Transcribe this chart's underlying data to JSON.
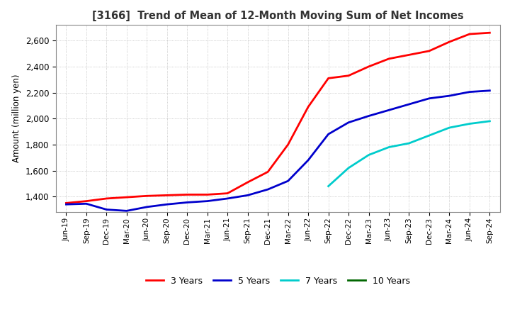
{
  "title": "[3166]  Trend of Mean of 12-Month Moving Sum of Net Incomes",
  "ylabel": "Amount (million yen)",
  "ylim": [
    1280,
    2720
  ],
  "yticks": [
    1400,
    1600,
    1800,
    2000,
    2200,
    2400,
    2600
  ],
  "legend_labels": [
    "3 Years",
    "5 Years",
    "7 Years",
    "10 Years"
  ],
  "legend_colors": [
    "#ff0000",
    "#0000cc",
    "#00cccc",
    "#006600"
  ],
  "background_color": "#ffffff",
  "plot_bg_color": "#ffffff",
  "grid_color": "#aaaaaa",
  "x_labels": [
    "Jun-19",
    "Sep-19",
    "Dec-19",
    "Mar-20",
    "Jun-20",
    "Sep-20",
    "Dec-20",
    "Mar-21",
    "Jun-21",
    "Sep-21",
    "Dec-21",
    "Mar-22",
    "Jun-22",
    "Sep-22",
    "Dec-22",
    "Mar-23",
    "Jun-23",
    "Sep-23",
    "Dec-23",
    "Mar-24",
    "Jun-24",
    "Sep-24"
  ],
  "series_3y": [
    1350,
    1365,
    1385,
    1395,
    1405,
    1410,
    1415,
    1415,
    1425,
    1510,
    1590,
    1800,
    2090,
    2310,
    2330,
    2400,
    2460,
    2490,
    2520,
    2590,
    2650,
    2660
  ],
  "series_5y": [
    1340,
    1345,
    1300,
    1290,
    1320,
    1340,
    1355,
    1365,
    1385,
    1410,
    1455,
    1520,
    1680,
    1880,
    1970,
    2020,
    2065,
    2110,
    2155,
    2175,
    2205,
    2215
  ],
  "series_7y": [
    null,
    null,
    null,
    null,
    null,
    null,
    null,
    null,
    null,
    null,
    null,
    null,
    null,
    1480,
    1620,
    1720,
    1780,
    1810,
    1870,
    1930,
    1960,
    1980
  ],
  "series_10y": [
    null,
    null,
    null,
    null,
    null,
    null,
    null,
    null,
    null,
    null,
    null,
    null,
    null,
    null,
    null,
    null,
    null,
    null,
    null,
    null,
    null,
    null
  ]
}
